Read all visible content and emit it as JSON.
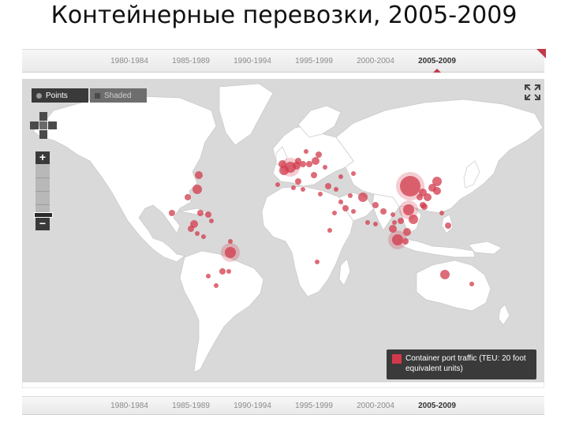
{
  "slide": {
    "title": "Контейнерные перевозки, 2005-2009"
  },
  "timeline": {
    "periods": [
      "1980-1984",
      "1985-1989",
      "1990-1994",
      "1995-1999",
      "2000-2004",
      "2005-2009"
    ],
    "active_index": 5
  },
  "map_controls": {
    "toggle_points": "Points",
    "toggle_shaded": "Shaded",
    "zoom_in": "+",
    "zoom_out": "−"
  },
  "legend": {
    "label": "Container port traffic (TEU: 20 foot equivalent units)"
  },
  "colors": {
    "ocean": "#d9d9d9",
    "land": "#ffffff",
    "point": "#d2394b",
    "accent": "#c23b4b"
  },
  "icons": {
    "fullscreen": "fullscreen-icon",
    "pan": "pan-control-icon"
  }
}
